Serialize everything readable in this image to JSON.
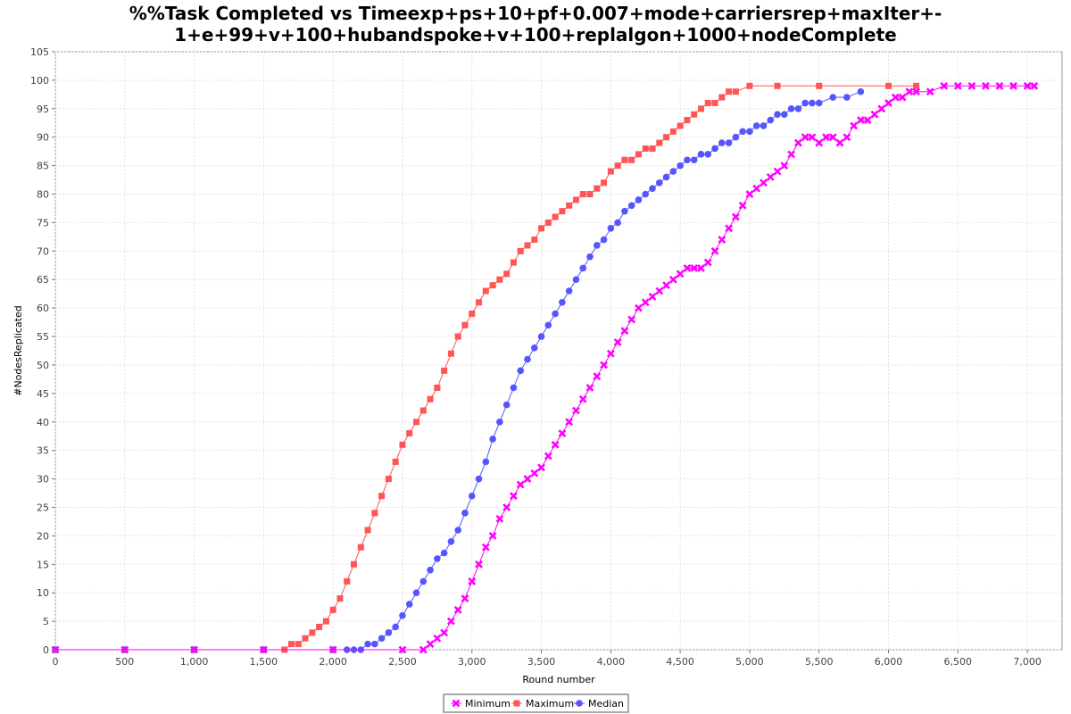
{
  "chart_data": {
    "type": "line",
    "title_lines": [
      "%%Task Completed vs Timeexp+ps+10+pf+0.007+mode+carriersrep+maxIter+-",
      "1+e+99+v+100+hubandspoke+v+100+replalgon+1000+nodeComplete"
    ],
    "xlabel": "Round number",
    "ylabel": "#NodesReplicated",
    "xlim": [
      0,
      7250
    ],
    "ylim": [
      0,
      105
    ],
    "x_ticks": [
      0,
      500,
      1000,
      1500,
      2000,
      2500,
      3000,
      3500,
      4000,
      4500,
      5000,
      5500,
      6000,
      6500,
      7000
    ],
    "x_tick_labels": [
      "0",
      "500",
      "1,000",
      "1,500",
      "2,000",
      "2,500",
      "3,000",
      "3,500",
      "4,000",
      "4,500",
      "5,000",
      "5,500",
      "6,000",
      "6,500",
      "7,000"
    ],
    "y_ticks": [
      0,
      5,
      10,
      15,
      20,
      25,
      30,
      35,
      40,
      45,
      50,
      55,
      60,
      65,
      70,
      75,
      80,
      85,
      90,
      95,
      100,
      105
    ],
    "grid": true,
    "legend_position": "bottom-center",
    "series": [
      {
        "name": "Minimum",
        "color": "#ff00ff",
        "marker": "x",
        "x": [
          0,
          500,
          1000,
          1500,
          2000,
          2500,
          2650,
          2700,
          2750,
          2800,
          2850,
          2900,
          2950,
          3000,
          3050,
          3100,
          3150,
          3200,
          3250,
          3300,
          3350,
          3400,
          3450,
          3500,
          3550,
          3600,
          3650,
          3700,
          3750,
          3800,
          3850,
          3900,
          3950,
          4000,
          4050,
          4100,
          4150,
          4200,
          4250,
          4300,
          4350,
          4400,
          4450,
          4500,
          4550,
          4600,
          4650,
          4700,
          4750,
          4800,
          4850,
          4900,
          4950,
          5000,
          5050,
          5100,
          5150,
          5200,
          5250,
          5300,
          5350,
          5400,
          5450,
          5500,
          5550,
          5600,
          5650,
          5700,
          5750,
          5800,
          5850,
          5900,
          5950,
          6000,
          6050,
          6100,
          6150,
          6200,
          6300,
          6400,
          6500,
          6600,
          6700,
          6800,
          6900,
          7000,
          7050
        ],
        "values": [
          0,
          0,
          0,
          0,
          0,
          0,
          0,
          1,
          2,
          3,
          5,
          7,
          9,
          12,
          15,
          18,
          20,
          23,
          25,
          27,
          29,
          30,
          31,
          32,
          34,
          36,
          38,
          40,
          42,
          44,
          46,
          48,
          50,
          52,
          54,
          56,
          58,
          60,
          61,
          62,
          63,
          64,
          65,
          66,
          67,
          67,
          67,
          68,
          70,
          72,
          74,
          76,
          78,
          80,
          81,
          82,
          83,
          84,
          85,
          87,
          89,
          90,
          90,
          89,
          90,
          90,
          89,
          90,
          92,
          93,
          93,
          94,
          95,
          96,
          97,
          97,
          98,
          98,
          98,
          99,
          99,
          99,
          99,
          99,
          99,
          99,
          99
        ]
      },
      {
        "name": "Maximum",
        "color": "#ff5555",
        "marker": "square",
        "x": [
          0,
          500,
          1000,
          1500,
          1650,
          1700,
          1750,
          1800,
          1850,
          1900,
          1950,
          2000,
          2050,
          2100,
          2150,
          2200,
          2250,
          2300,
          2350,
          2400,
          2450,
          2500,
          2550,
          2600,
          2650,
          2700,
          2750,
          2800,
          2850,
          2900,
          2950,
          3000,
          3050,
          3100,
          3150,
          3200,
          3250,
          3300,
          3350,
          3400,
          3450,
          3500,
          3550,
          3600,
          3650,
          3700,
          3750,
          3800,
          3850,
          3900,
          3950,
          4000,
          4050,
          4100,
          4150,
          4200,
          4250,
          4300,
          4350,
          4400,
          4450,
          4500,
          4550,
          4600,
          4650,
          4700,
          4750,
          4800,
          4850,
          4900,
          5000,
          5200,
          5500,
          6000,
          6200
        ],
        "values": [
          0,
          0,
          0,
          0,
          0,
          1,
          1,
          2,
          3,
          4,
          5,
          7,
          9,
          12,
          15,
          18,
          21,
          24,
          27,
          30,
          33,
          36,
          38,
          40,
          42,
          44,
          46,
          49,
          52,
          55,
          57,
          59,
          61,
          63,
          64,
          65,
          66,
          68,
          70,
          71,
          72,
          74,
          75,
          76,
          77,
          78,
          79,
          80,
          80,
          81,
          82,
          84,
          85,
          86,
          86,
          87,
          88,
          88,
          89,
          90,
          91,
          92,
          93,
          94,
          95,
          96,
          96,
          97,
          98,
          98,
          99,
          99,
          99,
          99,
          99
        ]
      },
      {
        "name": "Median",
        "color": "#5555ff",
        "marker": "circle",
        "x": [
          0,
          500,
          1000,
          1500,
          2000,
          2100,
          2150,
          2200,
          2250,
          2300,
          2350,
          2400,
          2450,
          2500,
          2550,
          2600,
          2650,
          2700,
          2750,
          2800,
          2850,
          2900,
          2950,
          3000,
          3050,
          3100,
          3150,
          3200,
          3250,
          3300,
          3350,
          3400,
          3450,
          3500,
          3550,
          3600,
          3650,
          3700,
          3750,
          3800,
          3850,
          3900,
          3950,
          4000,
          4050,
          4100,
          4150,
          4200,
          4250,
          4300,
          4350,
          4400,
          4450,
          4500,
          4550,
          4600,
          4650,
          4700,
          4750,
          4800,
          4850,
          4900,
          4950,
          5000,
          5050,
          5100,
          5150,
          5200,
          5250,
          5300,
          5350,
          5400,
          5450,
          5500,
          5600,
          5700,
          5800
        ],
        "values": [
          0,
          0,
          0,
          0,
          0,
          0,
          0,
          0,
          1,
          1,
          2,
          3,
          4,
          6,
          8,
          10,
          12,
          14,
          16,
          17,
          19,
          21,
          24,
          27,
          30,
          33,
          37,
          40,
          43,
          46,
          49,
          51,
          53,
          55,
          57,
          59,
          61,
          63,
          65,
          67,
          69,
          71,
          72,
          74,
          75,
          77,
          78,
          79,
          80,
          81,
          82,
          83,
          84,
          85,
          86,
          86,
          87,
          87,
          88,
          89,
          89,
          90,
          91,
          91,
          92,
          92,
          93,
          94,
          94,
          95,
          95,
          96,
          96,
          96,
          97,
          97,
          98
        ]
      }
    ]
  }
}
